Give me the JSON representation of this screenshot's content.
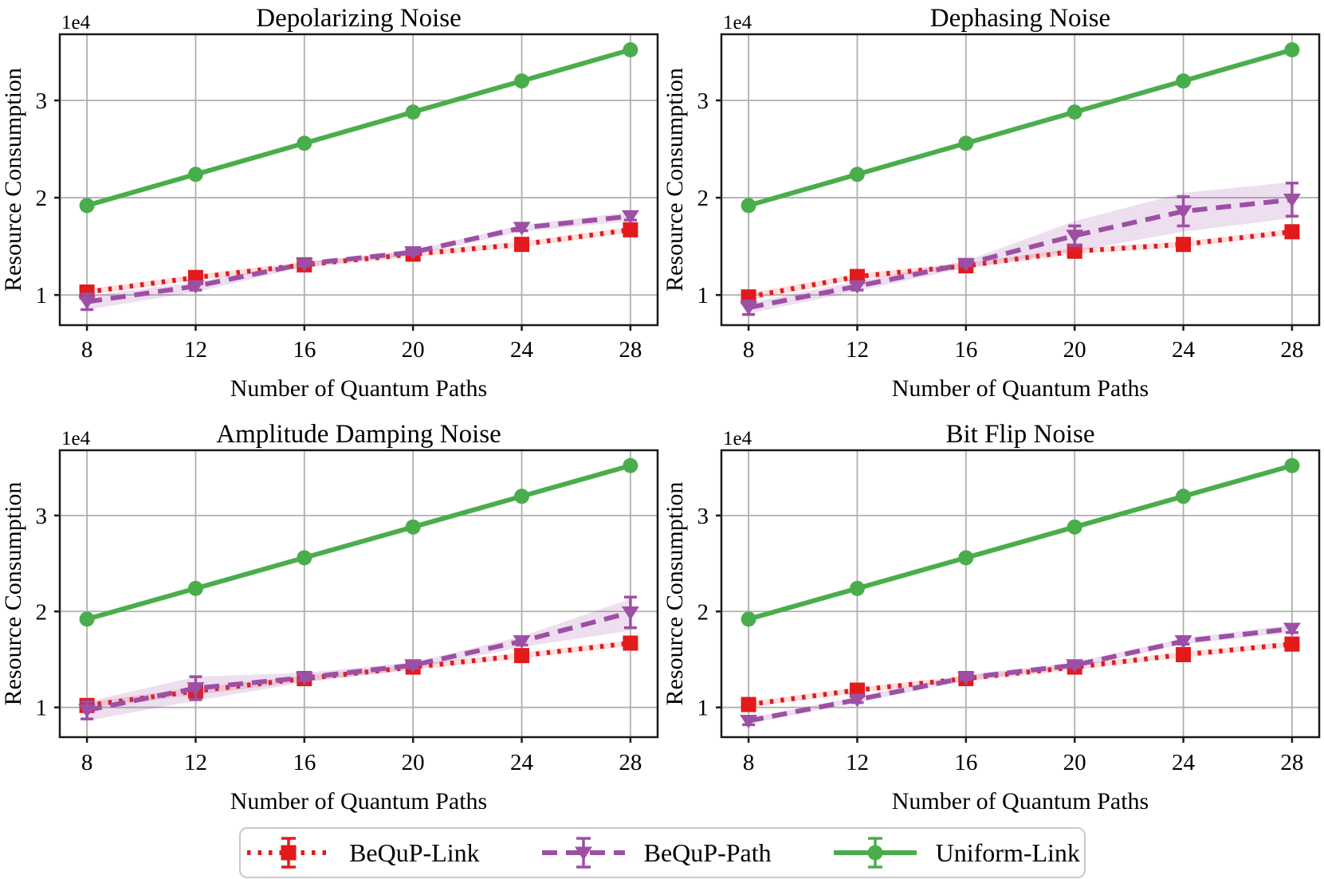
{
  "styles": {
    "red": "#e31a1c",
    "purple": "#9d4fa5",
    "green": "#4aad4c",
    "red_band": "rgba(227,26,28,0.14)",
    "purple_band": "rgba(157,79,165,0.18)",
    "grid": "#b0b0b0",
    "frame": "#1a1a1a"
  },
  "axes": {
    "xlabel": "Number of Quantum Paths",
    "ylabel": "Resource Consumption",
    "offset_label": "1e4",
    "x_ticks": [
      8,
      12,
      16,
      20,
      24,
      28
    ],
    "y_ticks": [
      1,
      2,
      3
    ],
    "xlim": [
      7,
      29
    ],
    "ylim": [
      0.69,
      3.68
    ],
    "grid_on": true
  },
  "legend": {
    "entries": [
      {
        "label": "BeQuP-Link",
        "color_key": "red",
        "marker": "square",
        "linestyle": "dotted"
      },
      {
        "label": "BeQuP-Path",
        "color_key": "purple",
        "marker": "triangle-down",
        "linestyle": "dashed"
      },
      {
        "label": "Uniform-Link",
        "color_key": "green",
        "marker": "circle",
        "linestyle": "solid"
      }
    ],
    "position": "bottom-center"
  },
  "chart_data": [
    {
      "type": "line",
      "title": "Depolarizing Noise",
      "x": [
        8,
        12,
        16,
        20,
        24,
        28
      ],
      "series": [
        {
          "name": "BeQuP-Link",
          "color_key": "red",
          "marker": "square",
          "linestyle": "dotted",
          "values": [
            1.03,
            1.18,
            1.31,
            1.42,
            1.52,
            1.67
          ],
          "yerr": [
            0.02,
            0.02,
            0.02,
            0.02,
            0.03,
            0.03
          ],
          "band_lo": [
            1.0,
            1.15,
            1.28,
            1.39,
            1.49,
            1.64
          ],
          "band_hi": [
            1.06,
            1.21,
            1.34,
            1.45,
            1.55,
            1.7
          ]
        },
        {
          "name": "BeQuP-Path",
          "color_key": "purple",
          "marker": "triangle-down",
          "linestyle": "dashed",
          "values": [
            0.93,
            1.09,
            1.32,
            1.44,
            1.69,
            1.81
          ],
          "yerr": [
            0.08,
            0.04,
            0.02,
            0.02,
            0.03,
            0.04
          ],
          "band_lo": [
            0.85,
            1.03,
            1.29,
            1.41,
            1.65,
            1.76
          ],
          "band_hi": [
            0.99,
            1.13,
            1.34,
            1.46,
            1.72,
            1.85
          ]
        },
        {
          "name": "Uniform-Link",
          "color_key": "green",
          "marker": "circle",
          "linestyle": "solid",
          "values": [
            1.92,
            2.24,
            2.56,
            2.88,
            3.2,
            3.52
          ],
          "yerr": [
            0,
            0,
            0,
            0,
            0,
            0
          ],
          "band_lo": [
            1.92,
            2.24,
            2.56,
            2.88,
            3.2,
            3.52
          ],
          "band_hi": [
            1.92,
            2.24,
            2.56,
            2.88,
            3.2,
            3.52
          ]
        }
      ]
    },
    {
      "type": "line",
      "title": "Dephasing Noise",
      "x": [
        8,
        12,
        16,
        20,
        24,
        28
      ],
      "series": [
        {
          "name": "BeQuP-Link",
          "color_key": "red",
          "marker": "square",
          "linestyle": "dotted",
          "values": [
            0.98,
            1.19,
            1.3,
            1.45,
            1.52,
            1.65
          ],
          "yerr": [
            0.04,
            0.02,
            0.02,
            0.03,
            0.03,
            0.03
          ],
          "band_lo": [
            0.94,
            1.16,
            1.27,
            1.42,
            1.49,
            1.62
          ],
          "band_hi": [
            1.02,
            1.22,
            1.33,
            1.48,
            1.55,
            1.68
          ]
        },
        {
          "name": "BeQuP-Path",
          "color_key": "purple",
          "marker": "triangle-down",
          "linestyle": "dashed",
          "values": [
            0.87,
            1.09,
            1.32,
            1.61,
            1.86,
            1.98
          ],
          "yerr": [
            0.07,
            0.04,
            0.02,
            0.1,
            0.15,
            0.17
          ],
          "band_lo": [
            0.81,
            1.04,
            1.28,
            1.45,
            1.65,
            1.79
          ],
          "band_hi": [
            0.92,
            1.14,
            1.35,
            1.76,
            2.05,
            2.16
          ]
        },
        {
          "name": "Uniform-Link",
          "color_key": "green",
          "marker": "circle",
          "linestyle": "solid",
          "values": [
            1.92,
            2.24,
            2.56,
            2.88,
            3.2,
            3.52
          ],
          "yerr": [
            0,
            0,
            0,
            0,
            0,
            0
          ],
          "band_lo": [
            1.92,
            2.24,
            2.56,
            2.88,
            3.2,
            3.52
          ],
          "band_hi": [
            1.92,
            2.24,
            2.56,
            2.88,
            3.2,
            3.52
          ]
        }
      ]
    },
    {
      "type": "line",
      "title": "Amplitude Damping Noise",
      "x": [
        8,
        12,
        16,
        20,
        24,
        28
      ],
      "series": [
        {
          "name": "BeQuP-Link",
          "color_key": "red",
          "marker": "square",
          "linestyle": "dotted",
          "values": [
            1.02,
            1.17,
            1.3,
            1.42,
            1.54,
            1.67
          ],
          "yerr": [
            0.03,
            0.04,
            0.02,
            0.02,
            0.03,
            0.03
          ],
          "band_lo": [
            0.99,
            1.13,
            1.27,
            1.39,
            1.51,
            1.64
          ],
          "band_hi": [
            1.05,
            1.21,
            1.33,
            1.45,
            1.57,
            1.7
          ]
        },
        {
          "name": "BeQuP-Path",
          "color_key": "purple",
          "marker": "triangle-down",
          "linestyle": "dashed",
          "values": [
            0.97,
            1.2,
            1.31,
            1.44,
            1.69,
            1.99
          ],
          "yerr": [
            0.09,
            0.12,
            0.03,
            0.03,
            0.04,
            0.16
          ],
          "band_lo": [
            0.86,
            1.07,
            1.26,
            1.4,
            1.63,
            1.8
          ],
          "band_hi": [
            1.06,
            1.32,
            1.36,
            1.47,
            1.74,
            2.13
          ]
        },
        {
          "name": "Uniform-Link",
          "color_key": "green",
          "marker": "circle",
          "linestyle": "solid",
          "values": [
            1.92,
            2.24,
            2.56,
            2.88,
            3.2,
            3.52
          ],
          "yerr": [
            0,
            0,
            0,
            0,
            0,
            0
          ],
          "band_lo": [
            1.92,
            2.24,
            2.56,
            2.88,
            3.2,
            3.52
          ],
          "band_hi": [
            1.92,
            2.24,
            2.56,
            2.88,
            3.2,
            3.52
          ]
        }
      ]
    },
    {
      "type": "line",
      "title": "Bit Flip Noise",
      "x": [
        8,
        12,
        16,
        20,
        24,
        28
      ],
      "series": [
        {
          "name": "BeQuP-Link",
          "color_key": "red",
          "marker": "square",
          "linestyle": "dotted",
          "values": [
            1.03,
            1.18,
            1.3,
            1.42,
            1.55,
            1.66
          ],
          "yerr": [
            0.02,
            0.02,
            0.02,
            0.02,
            0.03,
            0.03
          ],
          "band_lo": [
            1.0,
            1.15,
            1.27,
            1.39,
            1.52,
            1.63
          ],
          "band_hi": [
            1.06,
            1.21,
            1.33,
            1.45,
            1.58,
            1.69
          ]
        },
        {
          "name": "BeQuP-Path",
          "color_key": "purple",
          "marker": "triangle-down",
          "linestyle": "dashed",
          "values": [
            0.86,
            1.08,
            1.31,
            1.44,
            1.69,
            1.82
          ],
          "yerr": [
            0.04,
            0.03,
            0.02,
            0.02,
            0.03,
            0.04
          ],
          "band_lo": [
            0.83,
            1.05,
            1.28,
            1.41,
            1.66,
            1.78
          ],
          "band_hi": [
            0.89,
            1.11,
            1.34,
            1.47,
            1.72,
            1.86
          ]
        },
        {
          "name": "Uniform-Link",
          "color_key": "green",
          "marker": "circle",
          "linestyle": "solid",
          "values": [
            1.92,
            2.24,
            2.56,
            2.88,
            3.2,
            3.52
          ],
          "yerr": [
            0,
            0,
            0,
            0,
            0,
            0
          ],
          "band_lo": [
            1.92,
            2.24,
            2.56,
            2.88,
            3.2,
            3.52
          ],
          "band_hi": [
            1.92,
            2.24,
            2.56,
            2.88,
            3.2,
            3.52
          ]
        }
      ]
    }
  ]
}
